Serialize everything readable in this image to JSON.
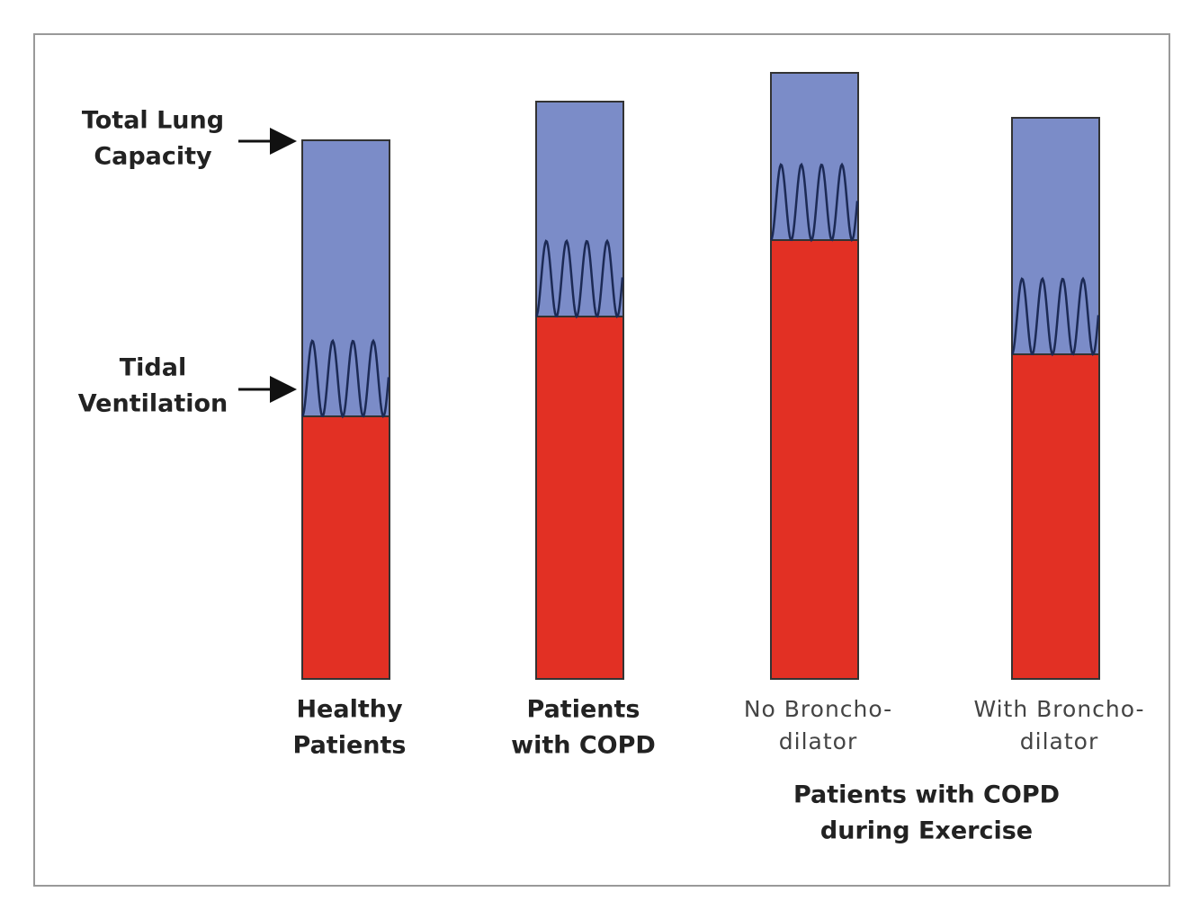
{
  "annotations": [
    {
      "lines": [
        "Total Lung",
        "Capacity"
      ]
    },
    {
      "lines": [
        "Tidal",
        "Ventilation"
      ]
    }
  ],
  "bars": [
    {
      "lines": [
        "Healthy",
        "Patients"
      ]
    },
    {
      "lines": [
        "Patients",
        "with COPD"
      ]
    },
    {
      "lines": [
        "No Broncho-",
        "dilator"
      ]
    },
    {
      "lines": [
        "With Broncho-",
        "dilator"
      ]
    }
  ],
  "group_label": {
    "lines": [
      "Patients with COPD",
      "during Exercise"
    ]
  }
}
